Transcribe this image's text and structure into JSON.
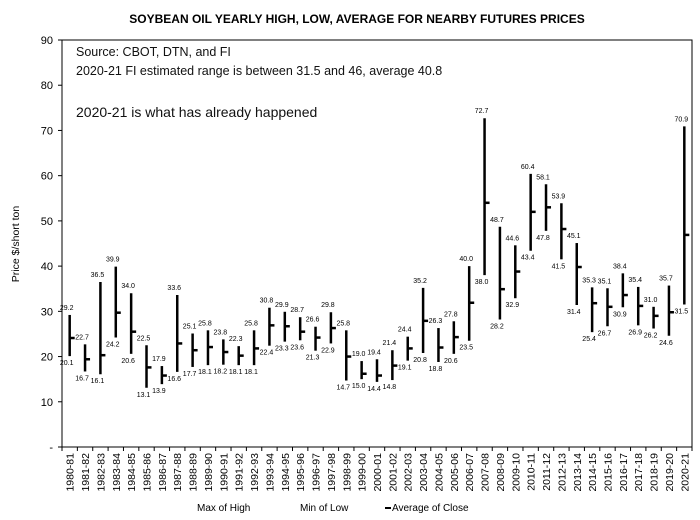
{
  "chart_data": {
    "type": "stock",
    "title": "SOYBEAN OIL YEARLY HIGH, LOW, AVERAGE FOR NEARBY FUTURES PRICES",
    "notes": [
      "Source: CBOT, DTN, and FI",
      "2020-21 FI estimated range is between 31.5 and 46, average 40.8",
      "2020-21 is what has already happened"
    ],
    "ylabel": "Price $/short ton",
    "xlabel": "",
    "ylim": [
      0,
      90
    ],
    "yticks": [
      {
        "value": 0,
        "label": "-"
      },
      {
        "value": 10,
        "label": "10"
      },
      {
        "value": 20,
        "label": "20"
      },
      {
        "value": 30,
        "label": "30"
      },
      {
        "value": 40,
        "label": "40"
      },
      {
        "value": 50,
        "label": "50"
      },
      {
        "value": 60,
        "label": "60"
      },
      {
        "value": 70,
        "label": "70"
      },
      {
        "value": 80,
        "label": "80"
      },
      {
        "value": 90,
        "label": "90"
      }
    ],
    "grid": false,
    "legend_position": "bottom",
    "legend": [
      "Max of High",
      "Min of Low",
      "Average of Close"
    ],
    "categories": [
      "1980-81",
      "1981-82",
      "1982-83",
      "1983-84",
      "1984-85",
      "1985-86",
      "1986-87",
      "1987-88",
      "1988-89",
      "1989-90",
      "1990-91",
      "1991-92",
      "1992-93",
      "1993-94",
      "1994-95",
      "1995-96",
      "1996-97",
      "1997-98",
      "1998-99",
      "1999-00",
      "2000-01",
      "2001-02",
      "2002-03",
      "2003-04",
      "2004-05",
      "2005-06",
      "2006-07",
      "2007-08",
      "2008-09",
      "2009-10",
      "2010-11",
      "2011-12",
      "2012-13",
      "2013-14",
      "2014-15",
      "2015-16",
      "2016-17",
      "2017-18",
      "2018-19",
      "2019-20",
      "2020-21"
    ],
    "series": [
      {
        "name": "Max of High",
        "values": [
          29.2,
          22.7,
          36.5,
          39.9,
          34.0,
          22.5,
          17.9,
          33.6,
          25.1,
          25.8,
          23.8,
          22.3,
          25.8,
          30.8,
          29.9,
          28.7,
          26.6,
          29.8,
          25.8,
          19.0,
          19.4,
          21.4,
          24.4,
          35.2,
          26.3,
          27.8,
          40.0,
          72.7,
          48.7,
          44.6,
          60.4,
          58.1,
          53.9,
          45.1,
          35.3,
          35.1,
          38.4,
          35.4,
          31.0,
          35.7,
          70.9
        ]
      },
      {
        "name": "Min of Low",
        "values": [
          20.1,
          16.7,
          16.1,
          24.2,
          20.6,
          13.1,
          13.9,
          16.6,
          17.7,
          18.1,
          18.2,
          18.1,
          18.1,
          22.4,
          23.3,
          23.6,
          21.3,
          22.9,
          14.7,
          15.0,
          14.4,
          14.8,
          19.1,
          20.8,
          18.8,
          20.6,
          23.5,
          38.0,
          28.2,
          32.9,
          43.4,
          47.8,
          41.5,
          31.4,
          25.4,
          26.7,
          30.9,
          26.9,
          26.2,
          24.6,
          31.5
        ]
      },
      {
        "name": "Average of Close",
        "values": [
          24.1,
          19.4,
          20.3,
          29.7,
          25.5,
          17.6,
          15.8,
          22.9,
          21.4,
          22.1,
          21.0,
          20.2,
          21.8,
          26.9,
          26.7,
          25.5,
          24.2,
          26.3,
          20.0,
          16.2,
          15.8,
          18.0,
          21.8,
          27.9,
          22.0,
          24.3,
          31.9,
          54.0,
          34.9,
          38.8,
          52.0,
          53.0,
          48.2,
          39.8,
          31.8,
          31.0,
          33.6,
          31.2,
          29.0,
          29.8,
          46.9
        ]
      }
    ],
    "high_labels": [
      "29.2",
      "22.7",
      "36.5",
      "39.9",
      "34.0",
      "22.5",
      "17.9",
      "33.6",
      "25.1",
      "25.8",
      "23.8",
      "22.3",
      "25.8",
      "30.8",
      "29.9",
      "28.7",
      "26.6",
      "29.8",
      "25.8",
      "19.0",
      "19.4",
      "21.4",
      "24.4",
      "35.2",
      "26.3",
      "27.8",
      "40.0",
      "72.7",
      "48.7",
      "44.6",
      "60.4",
      "58.1",
      "53.9",
      "45.1",
      "35.3",
      "35.1",
      "38.4",
      "35.4",
      "31.0",
      "35.7",
      "70.9"
    ],
    "low_labels": [
      "20.1",
      "16.7",
      "16.1",
      "24.2",
      "20.6",
      "13.1",
      "13.9",
      "16.6",
      "17.7",
      "18.1",
      "18.2",
      "18.1",
      "18.1",
      "22.4",
      "23.3",
      "23.6",
      "21.3",
      "22.9",
      "14.7",
      "15.0",
      "14.4",
      "14.8",
      "19.1",
      "20.8",
      "18.8",
      "20.6",
      "23.5",
      "38.0",
      "28.2",
      "32.9",
      "43.4",
      "47.8",
      "41.5",
      "31.4",
      "25.4",
      "26.7",
      "30.9",
      "26.9",
      "26.2",
      "24.6",
      "31.5"
    ]
  }
}
